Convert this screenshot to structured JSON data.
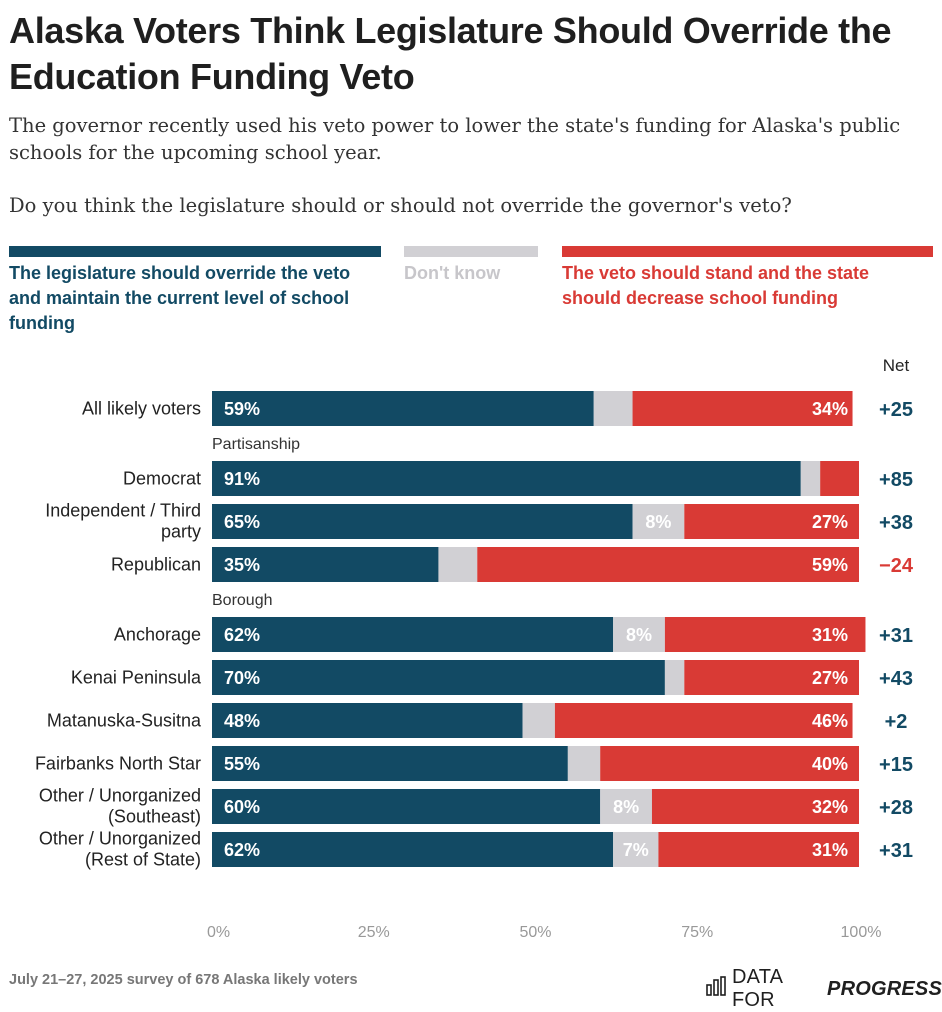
{
  "title": "Alaska Voters Think Legislature Should Override the Education Funding Veto",
  "subtitle": "The governor recently used his veto power to lower the state's funding for Alaska's public schools for the upcoming school year.",
  "question": "Do you think the legislature should or should not override the governor's veto?",
  "colors": {
    "override": "#124a64",
    "dontknow": "#d1d0d4",
    "stand": "#d93a35",
    "net": "#124a64",
    "net_negative": "#d93a35"
  },
  "legend": {
    "override": "The legislature should override the veto and maintain the current level of school funding",
    "dontknow": "Don't know",
    "stand": "The veto should stand and the state should decrease school funding"
  },
  "net_header": "Net",
  "footer": {
    "source": "July 21–27, 2025 survey of 678 Alaska likely voters",
    "brand_light": "DATA FOR",
    "brand_bold": "PROGRESS",
    "brand_icon": "bar-chart-icon"
  },
  "chart_data": {
    "type": "bar",
    "orientation": "horizontal-stacked",
    "xlim": [
      0,
      100
    ],
    "x_ticks": [
      "0%",
      "25%",
      "50%",
      "75%",
      "100%"
    ],
    "series": [
      {
        "name": "The legislature should override the veto and maintain the current level of school funding",
        "key": "override"
      },
      {
        "name": "Don't know",
        "key": "dontknow"
      },
      {
        "name": "The veto should stand and the state should decrease school funding",
        "key": "stand"
      }
    ],
    "sections": [
      {
        "label": "",
        "rows": [
          {
            "category": "All likely voters",
            "override": 59,
            "dontknow": 6,
            "stand": 34,
            "override_label": "59%",
            "dontknow_label": "",
            "stand_label": "34%",
            "net": "+25"
          }
        ]
      },
      {
        "label": "Partisanship",
        "rows": [
          {
            "category": "Democrat",
            "override": 91,
            "dontknow": 3,
            "stand": 6,
            "override_label": "91%",
            "dontknow_label": "",
            "stand_label": "",
            "net": "+85"
          },
          {
            "category": "Independent / Third party",
            "override": 65,
            "dontknow": 8,
            "stand": 27,
            "override_label": "65%",
            "dontknow_label": "8%",
            "stand_label": "27%",
            "net": "+38"
          },
          {
            "category": "Republican",
            "override": 35,
            "dontknow": 6,
            "stand": 59,
            "override_label": "35%",
            "dontknow_label": "",
            "stand_label": "59%",
            "net": "−24"
          }
        ]
      },
      {
        "label": "Borough",
        "rows": [
          {
            "category": "Anchorage",
            "override": 62,
            "dontknow": 8,
            "stand": 31,
            "override_label": "62%",
            "dontknow_label": "8%",
            "stand_label": "31%",
            "net": "+31"
          },
          {
            "category": "Kenai Peninsula",
            "override": 70,
            "dontknow": 3,
            "stand": 27,
            "override_label": "70%",
            "dontknow_label": "",
            "stand_label": "27%",
            "net": "+43"
          },
          {
            "category": "Matanuska-Susitna",
            "override": 48,
            "dontknow": 5,
            "stand": 46,
            "override_label": "48%",
            "dontknow_label": "",
            "stand_label": "46%",
            "net": "+2"
          },
          {
            "category": "Fairbanks North Star",
            "override": 55,
            "dontknow": 5,
            "stand": 40,
            "override_label": "55%",
            "dontknow_label": "",
            "stand_label": "40%",
            "net": "+15"
          },
          {
            "category": "Other / Unorganized (Southeast)",
            "override": 60,
            "dontknow": 8,
            "stand": 32,
            "override_label": "60%",
            "dontknow_label": "8%",
            "stand_label": "32%",
            "net": "+28"
          },
          {
            "category": "Other / Unorganized (Rest of State)",
            "override": 62,
            "dontknow": 7,
            "stand": 31,
            "override_label": "62%",
            "dontknow_label": "7%",
            "stand_label": "31%",
            "net": "+31"
          }
        ]
      }
    ]
  }
}
